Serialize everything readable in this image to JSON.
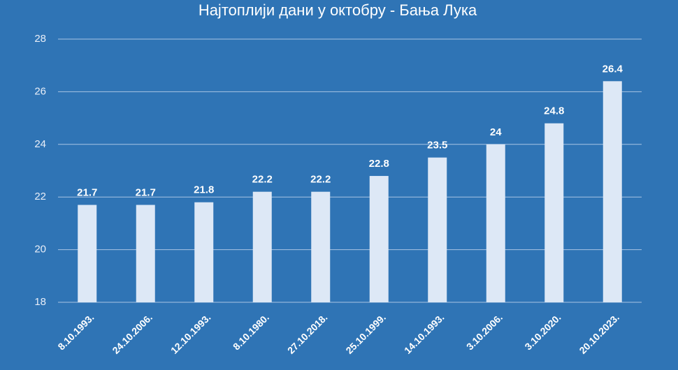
{
  "chart_data": {
    "type": "bar",
    "title": "Најтоплији дани у октобру - Бања Лука",
    "categories": [
      "8.10.1993.",
      "24.10.2006.",
      "12.10.1993.",
      "8.10.1980.",
      "27.10.2018.",
      "25.10.1999.",
      "14.10.1993.",
      "3.10.2006.",
      "3.10.2020.",
      "20.10.2023."
    ],
    "values": [
      21.7,
      21.7,
      21.8,
      22.2,
      22.2,
      22.8,
      23.5,
      24,
      24.8,
      26.4
    ],
    "color": "#dde8f6",
    "ylim": [
      18,
      28
    ],
    "yticks": [
      18,
      20,
      22,
      24,
      26,
      28
    ],
    "grid": true
  }
}
